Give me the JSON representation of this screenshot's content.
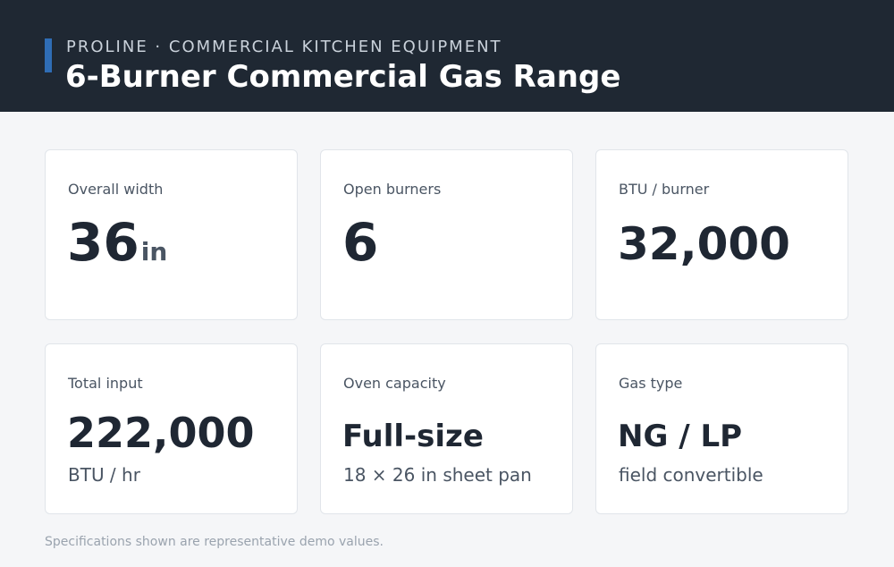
{
  "header": {
    "eyebrow": "PROLINE · COMMERCIAL KITCHEN EQUIPMENT",
    "title": "6-Burner Commercial Gas Range"
  },
  "cards": [
    {
      "label": "Overall width",
      "value": "36",
      "unit": "in"
    },
    {
      "label": "Open burners",
      "value": "6"
    },
    {
      "label": "BTU / burner",
      "value": "32,000"
    },
    {
      "label": "Total input",
      "value": "222,000",
      "sub": "BTU / hr"
    },
    {
      "label": "Oven capacity",
      "value": "Full-size",
      "sub": "18 × 26 in sheet pan"
    },
    {
      "label": "Gas type",
      "value": "NG / LP",
      "sub": "field convertible"
    }
  ],
  "footer": {
    "note": "Specifications shown are representative demo values."
  }
}
